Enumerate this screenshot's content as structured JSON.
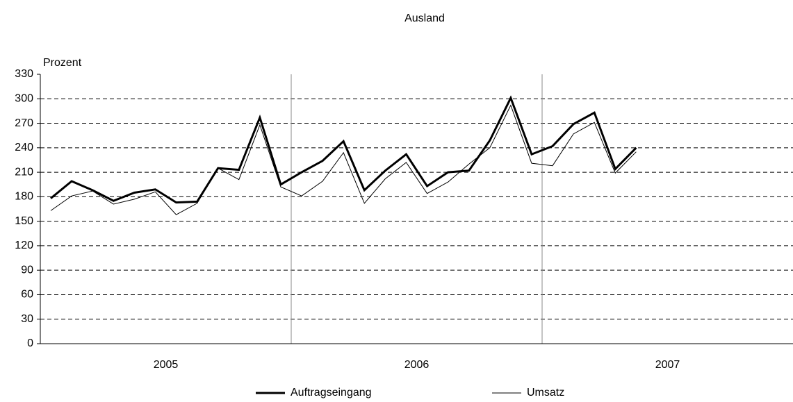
{
  "chart_data": {
    "type": "line",
    "title": "Ausland",
    "y_label": "Prozent",
    "categories": [
      null,
      null,
      null,
      null,
      null,
      null,
      null,
      null,
      null,
      null,
      null,
      null,
      null,
      null,
      null,
      null,
      null,
      null,
      null,
      null,
      null,
      null,
      null,
      null,
      null,
      null,
      null,
      null,
      null,
      null,
      null,
      null,
      null,
      null,
      null,
      null
    ],
    "year_labels": [
      "2005",
      "2006",
      "2007"
    ],
    "series": [
      {
        "name": "Auftragseingang",
        "color": "#000000",
        "values": [
          178,
          199,
          188,
          175,
          185,
          189,
          173,
          174,
          215,
          213,
          277,
          195,
          210,
          224,
          248,
          188,
          212,
          232,
          193,
          210,
          212,
          249,
          301,
          232,
          242,
          269,
          283,
          214,
          240,
          null,
          null,
          null,
          null,
          null,
          null,
          null
        ]
      },
      {
        "name": "Umsatz",
        "color": "#000000",
        "values": [
          163,
          181,
          187,
          171,
          177,
          186,
          158,
          172,
          215,
          201,
          268,
          192,
          181,
          199,
          234,
          172,
          202,
          222,
          184,
          198,
          220,
          240,
          292,
          221,
          218,
          257,
          271,
          209,
          235,
          null,
          null,
          null,
          null,
          null,
          null,
          null
        ]
      }
    ],
    "ylim": [
      0,
      330
    ],
    "yticks": [
      0,
      30,
      60,
      90,
      120,
      150,
      180,
      210,
      240,
      270,
      300,
      330
    ],
    "grid": true,
    "legend": "bottom"
  }
}
